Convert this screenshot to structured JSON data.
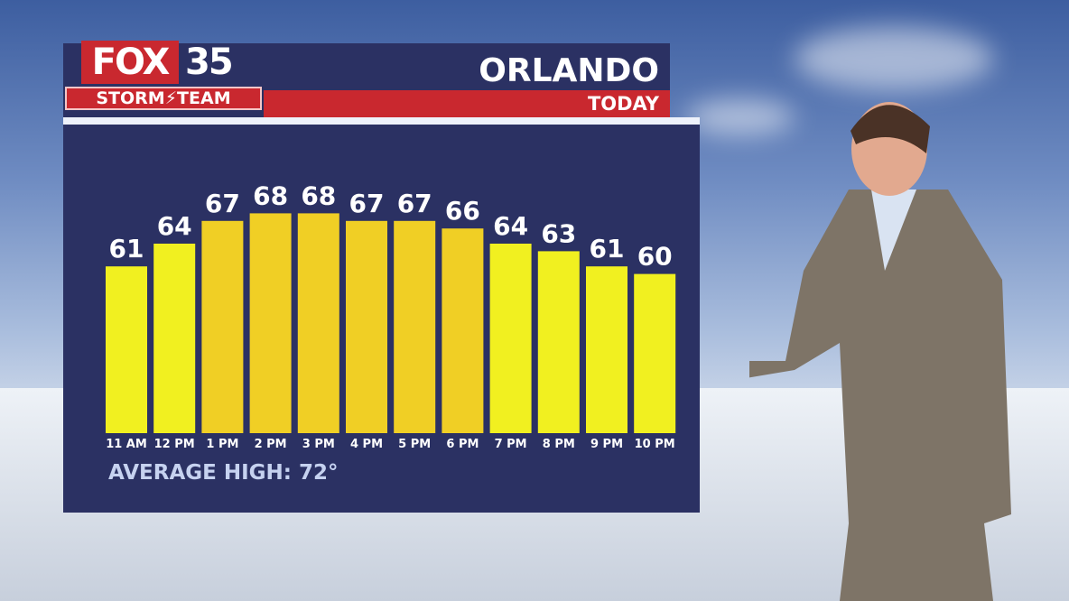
{
  "branding": {
    "logo_fox": "FOX",
    "logo_number": "35",
    "team": "STORM⚡TEAM"
  },
  "header": {
    "city": "ORLANDO",
    "period": "TODAY"
  },
  "footer": {
    "average_high": "AVERAGE HIGH: 72°"
  },
  "colors": {
    "panel": "#2b3163",
    "accent_red": "#c9282f",
    "bar_yellow_low": "#f1f020",
    "bar_yellow_high": "#f0cf25",
    "text": "#ffffff"
  },
  "chart_data": {
    "type": "bar",
    "categories": [
      "11 AM",
      "12 PM",
      "1 PM",
      "2 PM",
      "3 PM",
      "4 PM",
      "5 PM",
      "6 PM",
      "7 PM",
      "8 PM",
      "9 PM",
      "10 PM"
    ],
    "values": [
      61,
      64,
      67,
      68,
      68,
      67,
      67,
      66,
      64,
      63,
      61,
      60
    ],
    "title": "",
    "xlabel": "",
    "ylabel": "",
    "grid": false
  }
}
